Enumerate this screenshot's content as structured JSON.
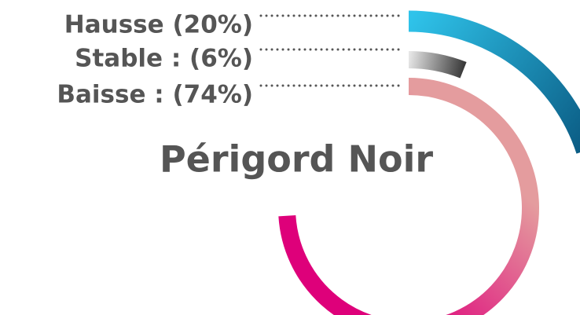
{
  "chart_data": {
    "type": "radial_bar",
    "title": "Périgord Noir",
    "series": [
      {
        "name": "Hausse (20%)",
        "value": 20,
        "colors": [
          "#2fc3ea",
          "#0a5a82"
        ]
      },
      {
        "name": "Stable : (6%)",
        "value": 6,
        "colors": [
          "#e6e6e6",
          "#3a3a3a"
        ]
      },
      {
        "name": "Baisse : (74%)",
        "value": 74,
        "colors": [
          "#e49c9e",
          "#de007a"
        ]
      }
    ],
    "ylim": [
      0,
      100
    ]
  }
}
